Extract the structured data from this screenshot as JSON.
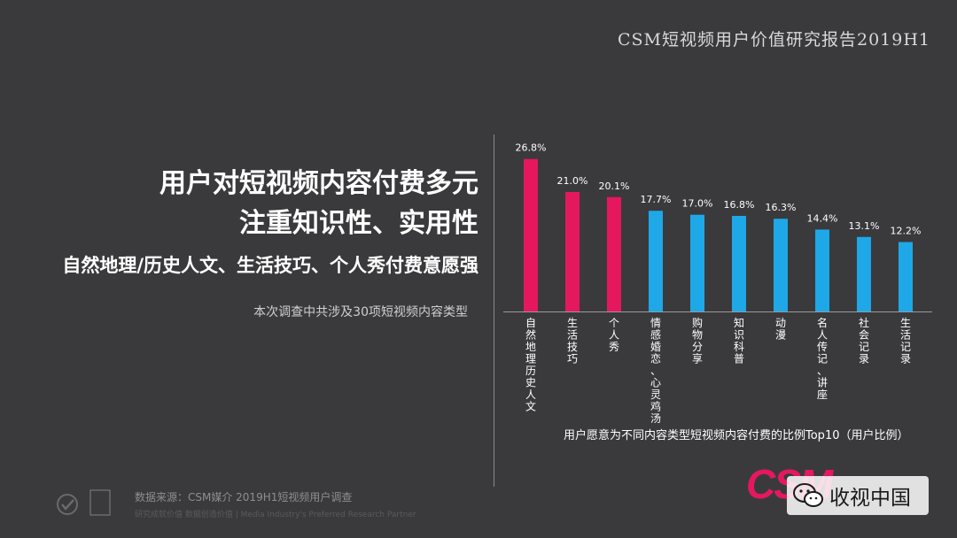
{
  "report_title": "CSM短视频用户价值研究报告2019H1",
  "headline": {
    "line1": "用户对短视频内容付费多元",
    "line2": "注重知识性、实用性",
    "line3": "自然地理/历史人文、生活技巧、个人秀付费意愿强"
  },
  "note": "本次调查中共涉及30项短视频内容类型",
  "source": "数据来源：CSM媒介 2019H1短视频用户调查",
  "tagline": "研究成就价值 数据创造价值 | Media Industry's Preferred Research Partner",
  "logo": {
    "csm": "CSM",
    "wechat_account": "收视中国"
  },
  "colors": {
    "highlight": "#e5185e",
    "normal": "#1ea8e8",
    "background": "#3a3a3c"
  },
  "chart_data": {
    "type": "bar",
    "title": "用户愿意为不同内容类型短视频内容付费的比例Top10（用户比例）",
    "categories": [
      "自然地理历史人文",
      "生活技巧",
      "个人秀",
      "情感婚恋、心灵鸡汤",
      "购物分享",
      "知识科普",
      "动漫",
      "名人传记、讲座",
      "社会记录",
      "生活记录"
    ],
    "values": [
      26.8,
      21.0,
      20.1,
      17.7,
      17.0,
      16.8,
      16.3,
      14.4,
      13.1,
      12.2
    ],
    "value_labels": [
      "26.8%",
      "21.0%",
      "20.1%",
      "17.7%",
      "17.0%",
      "16.8%",
      "16.3%",
      "14.4%",
      "13.1%",
      "12.2%"
    ],
    "highlight_count": 3,
    "ylim": [
      0,
      28
    ],
    "grid": false
  }
}
